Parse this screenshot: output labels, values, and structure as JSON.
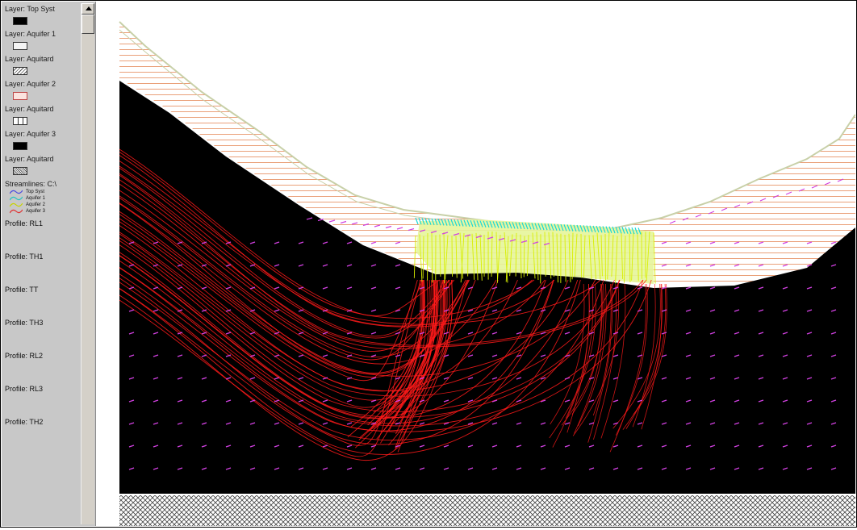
{
  "legend": {
    "layers": [
      {
        "label": "Layer: Top Syst",
        "swatch": "black"
      },
      {
        "label": "Layer: Aquifer 1",
        "swatch": "white"
      },
      {
        "label": "Layer: Aquitard",
        "swatch": "diag"
      },
      {
        "label": "Layer: Aquifer 2",
        "swatch": "red"
      },
      {
        "label": "Layer: Aquitard",
        "swatch": "box"
      },
      {
        "label": "Layer: Aquifer 3",
        "swatch": "black"
      },
      {
        "label": "Layer: Aquitard",
        "swatch": "check"
      }
    ],
    "streamlines_label": "Streamlines: C:\\",
    "streamlines": [
      {
        "label": "Top Syst",
        "color": "#4a4adf"
      },
      {
        "label": "Aquifer 1",
        "color": "#22c4c4"
      },
      {
        "label": "Aquifer 2",
        "color": "#c8d200"
      },
      {
        "label": "Aquifer 3",
        "color": "#e03030"
      }
    ],
    "profiles": [
      "Profile: RL1",
      "Profile: TH1",
      "Profile: TT",
      "Profile: TH3",
      "Profile: RL2",
      "Profile: RL3",
      "Profile: TH2"
    ]
  },
  "colors": {
    "streamline_red": "#ff1a1a",
    "streamline_yellow": "#d8f000",
    "streamline_cyan": "#18d8d8",
    "vector_magenta": "#d040e0",
    "hatch_orange": "#e8956a",
    "surface_line": "#c8d0a8"
  }
}
